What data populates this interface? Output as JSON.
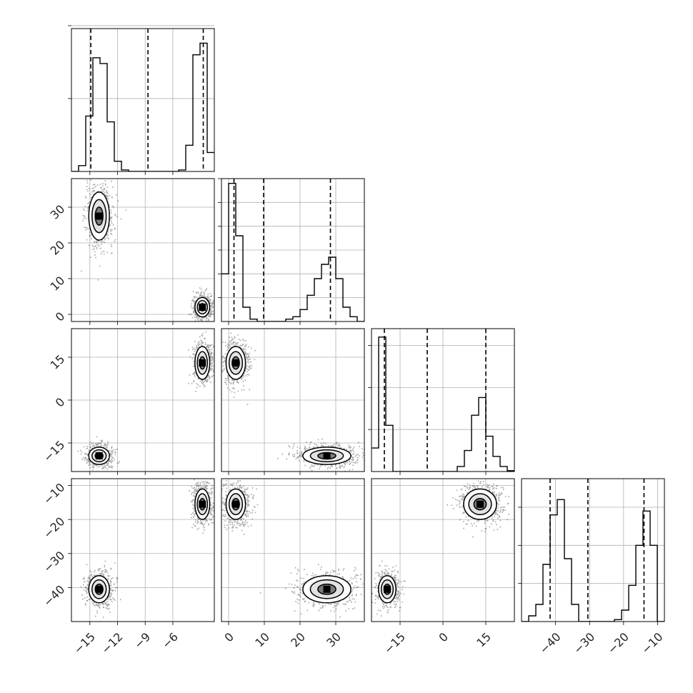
{
  "figure": {
    "type": "corner",
    "background": "#ffffff",
    "ink_color": "#000000",
    "grid_color": "#b0b0b0"
  },
  "chart_data": {
    "type": "corner",
    "grid": true,
    "parameters": [
      {
        "range": [
          -17,
          -1.5
        ],
        "ticks": [
          -15,
          -12,
          -9,
          -6
        ],
        "tick_labels": [
          "−15",
          "−12",
          "−9",
          "−6"
        ],
        "quantiles": [
          -14.9,
          -8.7,
          -2.7
        ],
        "histogram": {
          "bin_edges": [
            -17.0,
            -16.225,
            -15.45,
            -14.675,
            -13.9,
            -13.125,
            -12.35,
            -11.575,
            -10.8,
            -10.025,
            -9.25,
            -8.475,
            -7.7,
            -6.925,
            -6.15,
            -5.375,
            -4.6,
            -3.825,
            -3.05,
            -2.275,
            -1.5
          ],
          "counts": [
            0,
            4,
            38,
            78,
            74,
            34,
            7,
            1,
            0,
            0,
            0,
            0,
            0,
            0,
            0,
            1,
            18,
            80,
            88,
            13
          ],
          "ymax": 98,
          "yticks": [
            50,
            100
          ],
          "open_right": true
        }
      },
      {
        "range": [
          -2,
          38
        ],
        "ticks": [
          0,
          10,
          20,
          30
        ],
        "tick_labels": [
          "0",
          "10",
          "20",
          "30"
        ],
        "quantiles": [
          1.5,
          9.8,
          28.5
        ],
        "histogram": {
          "bin_edges": [
            -2,
            0,
            2,
            4,
            6,
            8,
            10,
            12,
            14,
            16,
            18,
            20,
            22,
            24,
            26,
            28,
            30,
            32,
            34,
            36,
            38
          ],
          "counts": [
            20,
            58,
            36,
            6,
            1,
            0,
            0,
            0,
            0,
            1,
            2,
            5,
            11,
            18,
            24,
            27,
            18,
            6,
            2,
            0
          ],
          "ymax": 60,
          "yticks": [
            10,
            20,
            30,
            40,
            50,
            60
          ],
          "open_right": false
        }
      },
      {
        "range": [
          -25,
          25
        ],
        "ticks": [
          -15,
          0,
          15
        ],
        "tick_labels": [
          "−15",
          "0",
          "15"
        ],
        "quantiles": [
          -20.5,
          -5.5,
          15.0
        ],
        "histogram": {
          "bin_edges": [
            -25.0,
            -22.5,
            -20.0,
            -17.5,
            -15.0,
            -12.5,
            -10.0,
            -7.5,
            -5.0,
            -2.5,
            0.0,
            2.5,
            5.0,
            7.5,
            10.0,
            12.5,
            15.0,
            17.5,
            20.0,
            22.5,
            25.0
          ],
          "counts": [
            28,
            160,
            55,
            0,
            0,
            0,
            0,
            0,
            0,
            0,
            0,
            0,
            6,
            25,
            67,
            88,
            42,
            18,
            6,
            1
          ],
          "ymax": 170,
          "yticks": [
            50,
            100,
            150
          ],
          "open_right": false
        }
      },
      {
        "range": [
          -50,
          -8
        ],
        "ticks": [
          -40,
          -30,
          -20,
          -10
        ],
        "tick_labels": [
          "−40",
          "−30",
          "−20",
          "−10"
        ],
        "quantiles": [
          -41.6,
          -30.5,
          -14.0
        ],
        "histogram": {
          "bin_edges": [
            -50.0,
            -47.9,
            -45.8,
            -43.7,
            -41.6,
            -39.5,
            -37.4,
            -35.3,
            -33.2,
            -31.1,
            -29.0,
            -26.9,
            -24.8,
            -22.7,
            -20.6,
            -18.5,
            -16.4,
            -14.3,
            -12.2,
            -10.1,
            -8.0
          ],
          "counts": [
            0,
            3,
            9,
            30,
            56,
            64,
            33,
            9,
            0,
            0,
            0,
            0,
            0,
            1,
            6,
            19,
            40,
            58,
            40,
            0
          ],
          "ymax": 75,
          "yticks": [
            20,
            40,
            60
          ],
          "open_right": false
        }
      }
    ],
    "modes": [
      {
        "weight": 0.5,
        "center": [
          -14.0,
          27.5,
          -19.5,
          -40.5
        ],
        "sigma": [
          0.7,
          4.2,
          1.9,
          2.5
        ]
      },
      {
        "weight": 0.5,
        "center": [
          -2.8,
          2.0,
          13.0,
          -15.5
        ],
        "sigma": [
          0.5,
          1.7,
          3.6,
          2.8
        ]
      }
    ],
    "contour_levels": [
      0.5,
      0.86
    ]
  }
}
